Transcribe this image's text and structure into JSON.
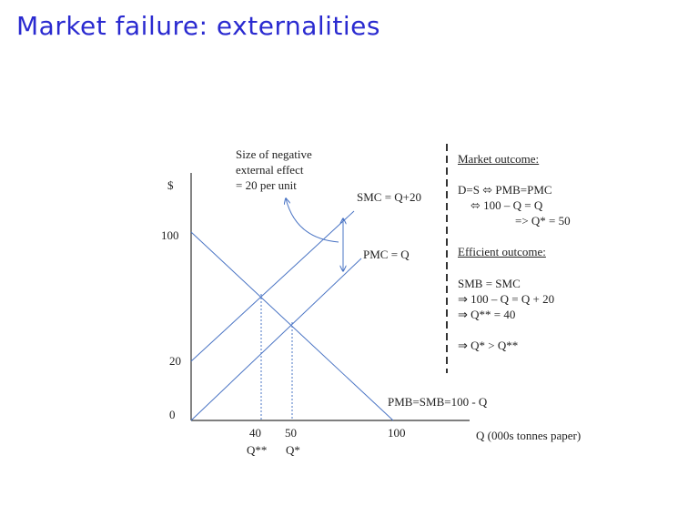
{
  "title": "Market failure: externalities",
  "diagram": {
    "y_axis_label": "$",
    "x_axis_label": "Q (000s tonnes paper)",
    "y_ticks": [
      "100",
      "20",
      "0"
    ],
    "x_ticks": [
      {
        "top": "40",
        "bottom": "Q**"
      },
      {
        "top": "50",
        "bottom": "Q*"
      },
      {
        "top": "100",
        "bottom": ""
      }
    ],
    "smc_label": "SMC = Q+20",
    "pmc_label": "PMC =  Q",
    "demand_label": "PMB=SMB=100 - Q",
    "note_lines": [
      "Size of negative",
      "external effect",
      "= 20 per unit"
    ]
  },
  "chart_data": {
    "type": "line",
    "x_range": [
      0,
      100
    ],
    "y_range": [
      0,
      100
    ],
    "series": [
      {
        "name": "SMC",
        "equation": "Q+20",
        "x": [
          0,
          50
        ],
        "y": [
          20,
          70
        ]
      },
      {
        "name": "PMC",
        "equation": "Q",
        "x": [
          0,
          60
        ],
        "y": [
          0,
          60
        ]
      },
      {
        "name": "PMB=SMB",
        "equation": "100 - Q",
        "x": [
          0,
          100
        ],
        "y": [
          100,
          0
        ]
      }
    ],
    "marked_quantities": [
      40,
      50
    ]
  },
  "market_outcome": {
    "heading": "Market outcome:",
    "lines": [
      "D=S ⬄ PMB=PMC",
      "⬄ 100 – Q = Q",
      "=> Q* = 50"
    ]
  },
  "efficient_outcome": {
    "heading": "Efficient outcome:",
    "lines": [
      "SMB = SMC",
      "⇒ 100 – Q = Q + 20",
      "⇒ Q** = 40",
      "⇒ Q* > Q**"
    ]
  }
}
